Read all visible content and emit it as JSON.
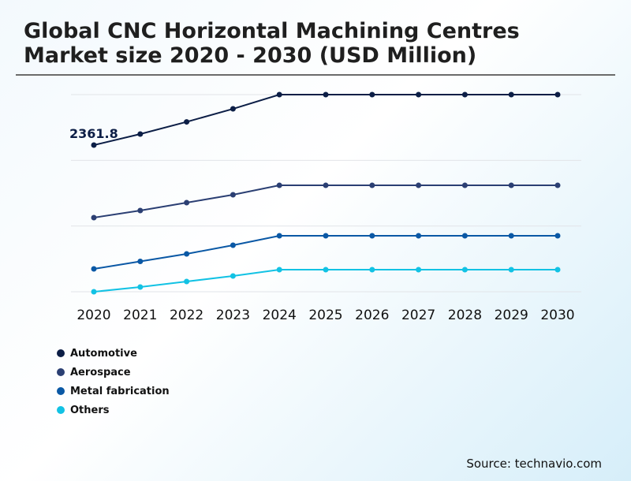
{
  "title_line1": "Global CNC Horizontal Machining Centres",
  "title_line2": "Market size 2020 - 2030 (USD Million)",
  "source": "Source: technavio.com",
  "chart_data": {
    "type": "line",
    "title": "Global CNC Horizontal Machining Centres Market size 2020 - 2030 (USD Million)",
    "categories": [
      "2020",
      "2021",
      "2022",
      "2023",
      "2024",
      "2025",
      "2026",
      "2027",
      "2028",
      "2029",
      "2030"
    ],
    "ylim": [
      0,
      3175
    ],
    "grid": true,
    "legend_position": "bottom-left",
    "annotations": [
      {
        "series": "Automotive",
        "x": "2020",
        "label": "2361.8"
      }
    ],
    "series": [
      {
        "name": "Automotive",
        "color": "#0c1e46",
        "values": [
          2361.8,
          2540,
          2736,
          2946,
          3175,
          3175,
          3175,
          3175,
          3175,
          3175,
          3175
        ]
      },
      {
        "name": "Aerospace",
        "color": "#2b3f73",
        "values": [
          1194,
          1308,
          1435,
          1562,
          1714,
          1714,
          1714,
          1714,
          1714,
          1714,
          1714
        ]
      },
      {
        "name": "Metal fabrication",
        "color": "#0a58a5",
        "values": [
          368,
          489,
          610,
          749,
          902,
          902,
          902,
          902,
          902,
          902,
          902
        ]
      },
      {
        "name": "Others",
        "color": "#12c2e4",
        "values": [
          0,
          76,
          165,
          254,
          356,
          356,
          356,
          356,
          356,
          356,
          356
        ]
      }
    ]
  }
}
